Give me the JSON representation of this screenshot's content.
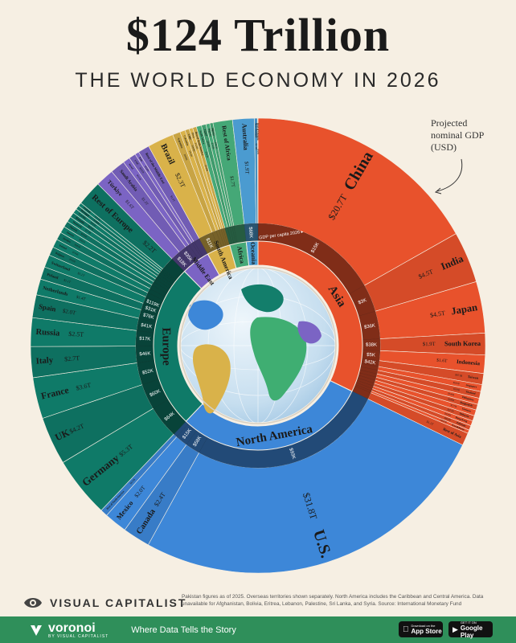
{
  "header": {
    "title": "$124 Trillion",
    "subtitle": "THE WORLD ECONOMY IN 2026"
  },
  "note": "Projected nominal GDP (USD)",
  "gdp_per_capita_label": "GDP per capita 2026 ▸",
  "colors": {
    "Asia": "#e8522c",
    "North America": "#3d87d8",
    "Europe": "#0f7a68",
    "Middle East": "#7b64c4",
    "South America": "#d9b24a",
    "Africa": "#45a877",
    "Oceania": "#4b9bd0",
    "background": "#f6efe3"
  },
  "chart_data": {
    "type": "sunburst",
    "title": "$124 Trillion",
    "subtitle": "THE WORLD ECONOMY IN 2026",
    "regions": [
      {
        "name": "Asia",
        "countries": [
          {
            "name": "China",
            "label": "$20.7T",
            "value": 20.7,
            "per_capita": "$15K"
          },
          {
            "name": "India",
            "label": "$4.5T",
            "value": 4.5,
            "per_capita": "$3K"
          },
          {
            "name": "Japan",
            "label": "$4.5T",
            "value": 4.5,
            "per_capita": "$36K"
          },
          {
            "name": "South Korea",
            "label": "$1.9T",
            "value": 1.9,
            "per_capita": "$38K"
          },
          {
            "name": "Indonesia",
            "label": "$1.6T",
            "value": 1.6,
            "per_capita": "$5K"
          },
          {
            "name": "Taiwan",
            "label": "$971B",
            "value": 0.971,
            "per_capita": "$42K"
          },
          {
            "name": "Singapore",
            "label": "$605B",
            "value": 0.605,
            "per_capita": ""
          },
          {
            "name": "Thailand",
            "label": "$593B",
            "value": 0.593,
            "per_capita": ""
          },
          {
            "name": "Philippines",
            "label": "$546B",
            "value": 0.546,
            "per_capita": ""
          },
          {
            "name": "Bangladesh",
            "label": "$500B",
            "value": 0.5,
            "per_capita": ""
          },
          {
            "name": "Vietnam",
            "label": "$517B",
            "value": 0.517,
            "per_capita": ""
          },
          {
            "name": "Malaysia",
            "label": "$471B",
            "value": 0.471,
            "per_capita": ""
          },
          {
            "name": "Hong Kong",
            "label": "$436B",
            "value": 0.436,
            "per_capita": ""
          },
          {
            "name": "Pakistan",
            "label": "$410B",
            "value": 0.41,
            "per_capita": ""
          },
          {
            "name": "Kazakhstan",
            "label": "$297B",
            "value": 0.297,
            "per_capita": ""
          },
          {
            "name": "Rest of Asia",
            "label": "$1.1T",
            "value": 1.1,
            "per_capita": ""
          }
        ]
      },
      {
        "name": "North America",
        "countries": [
          {
            "name": "U.S.",
            "label": "$31.8T",
            "value": 31.8,
            "per_capita": "$93K"
          },
          {
            "name": "Canada",
            "label": "$2.4T",
            "value": 2.4,
            "per_capita": "$58K"
          },
          {
            "name": "Mexico",
            "label": "$2.0T",
            "value": 2.0,
            "per_capita": "$15K"
          },
          {
            "name": "Rest of North America",
            "label": "$633B",
            "value": 0.633,
            "per_capita": ""
          }
        ]
      },
      {
        "name": "Europe",
        "countries": [
          {
            "name": "Germany",
            "label": "$5.3T",
            "value": 5.3,
            "per_capita": "$64K"
          },
          {
            "name": "UK",
            "label": "$4.2T",
            "value": 4.2,
            "per_capita": "$60K"
          },
          {
            "name": "France",
            "label": "$3.6T",
            "value": 3.6,
            "per_capita": "$52K"
          },
          {
            "name": "Italy",
            "label": "$2.7T",
            "value": 2.7,
            "per_capita": "$46K"
          },
          {
            "name": "Russia",
            "label": "$2.5T",
            "value": 2.5,
            "per_capita": "$17K"
          },
          {
            "name": "Spain",
            "label": "$2.0T",
            "value": 2.0,
            "per_capita": "$41K"
          },
          {
            "name": "Netherlands",
            "label": "$1.4T",
            "value": 1.4,
            "per_capita": "$76K"
          },
          {
            "name": "Poland",
            "label": "$1.1T",
            "value": 1.1,
            "per_capita": "$31K"
          },
          {
            "name": "Switzerland",
            "label": "$1.1T",
            "value": 1.1,
            "per_capita": "$119K"
          },
          {
            "name": "Belgium",
            "label": "$762B",
            "value": 0.762,
            "per_capita": ""
          },
          {
            "name": "Ireland",
            "label": "$736B",
            "value": 0.736,
            "per_capita": ""
          },
          {
            "name": "Sweden",
            "label": "$681B",
            "value": 0.681,
            "per_capita": ""
          },
          {
            "name": "Austria",
            "label": "$582B",
            "value": 0.582,
            "per_capita": ""
          },
          {
            "name": "Norway",
            "label": "$531B",
            "value": 0.531,
            "per_capita": ""
          },
          {
            "name": "Denmark",
            "label": "$474B",
            "value": 0.474,
            "per_capita": ""
          },
          {
            "name": "Romania",
            "label": "$435B",
            "value": 0.435,
            "per_capita": ""
          },
          {
            "name": "Czechia",
            "label": "$405B",
            "value": 0.405,
            "per_capita": ""
          },
          {
            "name": "Portugal",
            "label": "$340B",
            "value": 0.34,
            "per_capita": ""
          },
          {
            "name": "Finland",
            "label": "$319B",
            "value": 0.319,
            "per_capita": ""
          },
          {
            "name": "Rest of Europe",
            "label": "$2.2T",
            "value": 2.2,
            "per_capita": ""
          }
        ]
      },
      {
        "name": "Middle East",
        "countries": [
          {
            "name": "Türkiye",
            "label": "$1.6T",
            "value": 1.6,
            "per_capita": "$18K"
          },
          {
            "name": "Saudi Arabia",
            "label": "$1.3T",
            "value": 1.3,
            "per_capita": "$35K"
          },
          {
            "name": "Israel",
            "label": "$610B",
            "value": 0.61,
            "per_capita": ""
          },
          {
            "name": "UAE",
            "label": "$601B",
            "value": 0.601,
            "per_capita": ""
          },
          {
            "name": "Iran",
            "label": "$356B",
            "value": 0.356,
            "per_capita": ""
          },
          {
            "name": "Rest of the Middle East",
            "label": "$1.0T",
            "value": 1.0,
            "per_capita": ""
          }
        ]
      },
      {
        "name": "South America",
        "countries": [
          {
            "name": "Brazil",
            "label": "$2.3T",
            "value": 2.3,
            "per_capita": "$11K"
          },
          {
            "name": "Argentina",
            "label": "$668B",
            "value": 0.668,
            "per_capita": ""
          },
          {
            "name": "Colombia",
            "label": "$464B",
            "value": 0.464,
            "per_capita": ""
          },
          {
            "name": "Chile",
            "label": "$366B",
            "value": 0.366,
            "per_capita": ""
          },
          {
            "name": "Peru",
            "label": "$320B",
            "value": 0.32,
            "per_capita": ""
          },
          {
            "name": "Rest of South America",
            "label": "$336B",
            "value": 0.336,
            "per_capita": ""
          }
        ]
      },
      {
        "name": "Africa",
        "countries": [
          {
            "name": "South Africa",
            "label": "$445B",
            "value": 0.445,
            "per_capita": ""
          },
          {
            "name": "Egypt",
            "label": "$400B",
            "value": 0.4,
            "per_capita": ""
          },
          {
            "name": "Nigeria",
            "label": "$334B",
            "value": 0.334,
            "per_capita": ""
          },
          {
            "name": "Algeria",
            "label": "$285B",
            "value": 0.285,
            "per_capita": ""
          },
          {
            "name": "Rest of Africa",
            "label": "$1.7T",
            "value": 1.7,
            "per_capita": ""
          }
        ]
      },
      {
        "name": "Oceania",
        "countries": [
          {
            "name": "Australia",
            "label": "$1.9T",
            "value": 1.9,
            "per_capita": "$68K"
          },
          {
            "name": "New Zealand",
            "label": "$276B",
            "value": 0.276,
            "per_capita": ""
          },
          {
            "name": "Rest of Oceania",
            "label": "$38B",
            "value": 0.038,
            "per_capita": ""
          }
        ]
      }
    ]
  },
  "footer": {
    "brand": "VISUAL CAPITALIST",
    "footnote": "Pakistan figures as of 2025. Overseas territories shown separately. North America includes the Caribbean and Central America. Data unavailable for Afghanistan, Bolivia, Eritrea, Lebanon, Palestine, Sri Lanka, and Syria. Source: International Monetary Fund",
    "voronoi": "voronoi",
    "voronoi_by": "BY VISUAL CAPITALIST",
    "tagline": "Where Data Tells the Story",
    "appstore_small": "Download on the",
    "appstore_big": "App Store",
    "googleplay_small": "GET IT ON",
    "googleplay_big": "Google Play"
  }
}
